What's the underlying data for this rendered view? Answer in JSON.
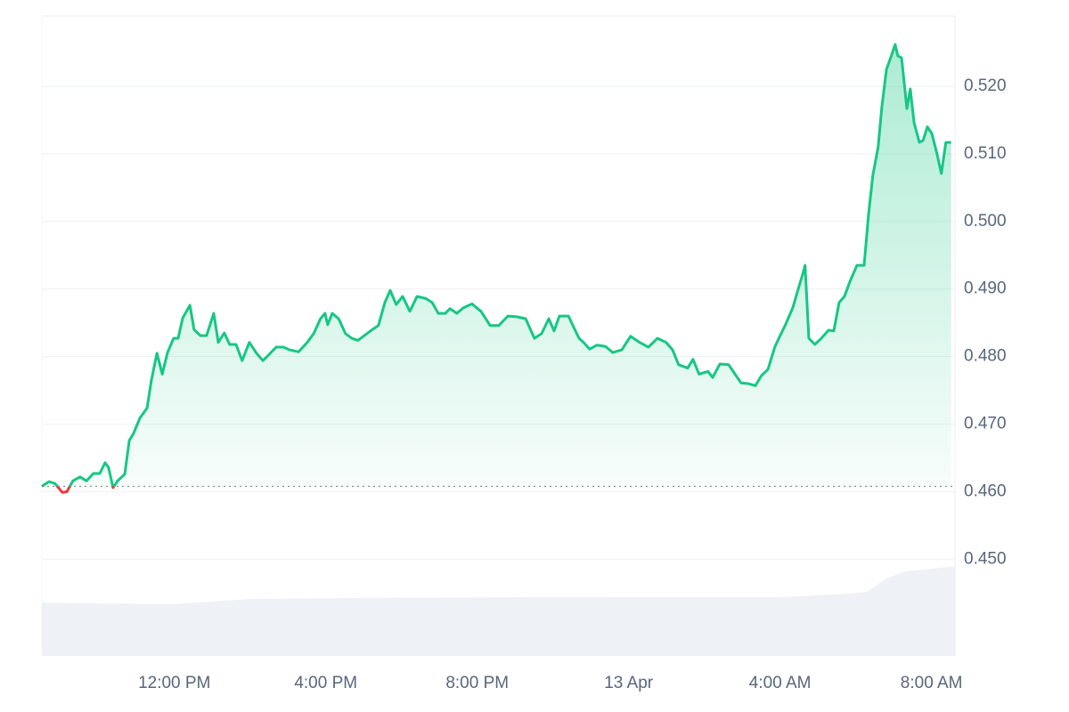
{
  "chart_data": {
    "type": "area",
    "x": [
      8.5,
      8.69,
      8.85,
      9.04,
      9.16,
      9.32,
      9.51,
      9.68,
      9.86,
      10.03,
      10.17,
      10.26,
      10.38,
      10.5,
      10.69,
      10.81,
      10.92,
      11.09,
      11.28,
      11.39,
      11.54,
      11.68,
      11.82,
      11.98,
      12.1,
      12.22,
      12.41,
      12.52,
      12.69,
      12.85,
      13.04,
      13.16,
      13.32,
      13.46,
      13.63,
      13.79,
      13.98,
      14.17,
      14.34,
      14.5,
      14.69,
      14.88,
      15.04,
      15.28,
      15.51,
      15.68,
      15.86,
      15.98,
      16.05,
      16.17,
      16.34,
      16.52,
      16.69,
      16.85,
      17.04,
      17.23,
      17.39,
      17.56,
      17.7,
      17.86,
      18.03,
      18.22,
      18.41,
      18.64,
      18.81,
      18.97,
      19.16,
      19.28,
      19.46,
      19.63,
      19.86,
      20.1,
      20.34,
      20.57,
      20.81,
      21.04,
      21.28,
      21.51,
      21.7,
      21.89,
      22.03,
      22.17,
      22.41,
      22.57,
      22.69,
      22.81,
      22.97,
      23.16,
      23.39,
      23.58,
      23.82,
      24.05,
      24.29,
      24.52,
      24.76,
      24.99,
      25.16,
      25.32,
      25.56,
      25.7,
      25.86,
      26.1,
      26.22,
      26.41,
      26.64,
      26.81,
      26.97,
      27.16,
      27.35,
      27.51,
      27.68,
      27.86,
      28.01,
      28.15,
      28.34,
      28.48,
      28.62,
      28.66,
      28.76,
      28.92,
      29.09,
      29.28,
      29.42,
      29.56,
      29.7,
      29.86,
      30.03,
      30.22,
      30.34,
      30.45,
      30.59,
      30.69,
      30.81,
      30.92,
      31.04,
      31.11,
      31.21,
      31.35,
      31.44,
      31.54,
      31.68,
      31.78,
      31.89,
      32.01,
      32.15,
      32.26,
      32.38,
      32.52
    ],
    "series": [
      {
        "color": "#16c784",
        "values": [
          0.4608,
          0.4615,
          0.4612,
          0.4599,
          0.46,
          0.4616,
          0.4622,
          0.4616,
          0.4627,
          0.4627,
          0.4643,
          0.4636,
          0.4606,
          0.4616,
          0.4626,
          0.4676,
          0.4686,
          0.4709,
          0.4724,
          0.4764,
          0.4805,
          0.4774,
          0.4806,
          0.4827,
          0.4827,
          0.4857,
          0.4876,
          0.484,
          0.4831,
          0.4831,
          0.4864,
          0.4821,
          0.4835,
          0.4818,
          0.4818,
          0.4794,
          0.4821,
          0.4805,
          0.4794,
          0.4803,
          0.4814,
          0.4814,
          0.481,
          0.4807,
          0.4821,
          0.4834,
          0.4856,
          0.4864,
          0.4847,
          0.4864,
          0.4856,
          0.4834,
          0.4827,
          0.4824,
          0.4832,
          0.484,
          0.4846,
          0.488,
          0.4898,
          0.4877,
          0.4889,
          0.4867,
          0.4889,
          0.4886,
          0.488,
          0.4864,
          0.4864,
          0.4871,
          0.4864,
          0.4872,
          0.4878,
          0.4867,
          0.4846,
          0.4846,
          0.486,
          0.4859,
          0.4856,
          0.4827,
          0.4834,
          0.4856,
          0.4838,
          0.486,
          0.486,
          0.4841,
          0.4827,
          0.4821,
          0.4811,
          0.4817,
          0.4815,
          0.4806,
          0.481,
          0.483,
          0.4821,
          0.4814,
          0.4827,
          0.4821,
          0.481,
          0.4788,
          0.4783,
          0.4796,
          0.4774,
          0.4778,
          0.4769,
          0.4789,
          0.4788,
          0.4774,
          0.4761,
          0.476,
          0.4757,
          0.4772,
          0.4781,
          0.4814,
          0.4832,
          0.4848,
          0.4873,
          0.49,
          0.4926,
          0.4935,
          0.4827,
          0.4818,
          0.4827,
          0.4839,
          0.4838,
          0.488,
          0.4889,
          0.4913,
          0.4935,
          0.4935,
          0.5012,
          0.5068,
          0.511,
          0.517,
          0.5225,
          0.5242,
          0.5262,
          0.5245,
          0.5242,
          0.5167,
          0.5196,
          0.5146,
          0.5117,
          0.512,
          0.514,
          0.513,
          0.5099,
          0.5071,
          0.5117,
          0.5117
        ]
      }
    ],
    "down_color": "#ea3943",
    "baseline": 0.4608,
    "volume": {
      "color": "#eef1f6",
      "axis": "y2",
      "x": [
        8.5,
        12,
        14,
        18,
        24,
        28,
        29.5,
        30.3,
        30.8,
        31.3,
        32.62
      ],
      "values": [
        8.3,
        8.1,
        8.9,
        9.1,
        9.2,
        9.2,
        9.6,
        10,
        12.1,
        13.2,
        14
      ]
    },
    "xlim": [
      8.5,
      32.62
    ],
    "xticks": [
      {
        "value": 12,
        "label": "12:00 PM"
      },
      {
        "value": 16,
        "label": "4:00 PM"
      },
      {
        "value": 20,
        "label": "8:00 PM"
      },
      {
        "value": 24,
        "label": "13 Apr"
      },
      {
        "value": 28,
        "label": "4:00 AM"
      },
      {
        "value": 32,
        "label": "8:00 AM"
      }
    ],
    "ylim": [
      0.4357,
      0.5304
    ],
    "yticks": [
      {
        "value": 0.45,
        "label": "0.450"
      },
      {
        "value": 0.46,
        "label": "0.460"
      },
      {
        "value": 0.47,
        "label": "0.470"
      },
      {
        "value": 0.48,
        "label": "0.480"
      },
      {
        "value": 0.49,
        "label": "0.490"
      },
      {
        "value": 0.5,
        "label": "0.500"
      },
      {
        "value": 0.51,
        "label": "0.510"
      },
      {
        "value": 0.52,
        "label": "0.520"
      }
    ],
    "y2lim": [
      0,
      100
    ],
    "grid": true
  }
}
